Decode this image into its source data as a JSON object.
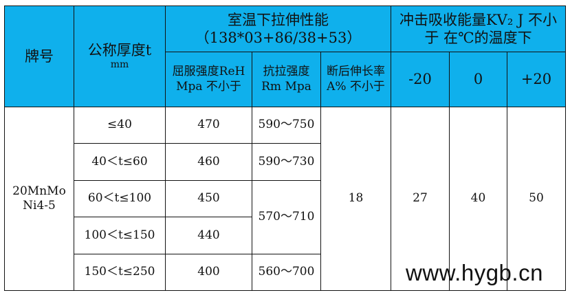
{
  "header": {
    "grade": "牌号",
    "thickness": "公称厚度t",
    "thickness_unit": "mm",
    "tensile_group": "室温下拉伸性能",
    "tensile_group_sub": "（138*03+86/38+53）",
    "impact_group": "冲击吸收能量KV₂ J 不小于 在℃的温度下",
    "yield": "屈服强度ReH Mpa 不小于",
    "tensile_strength": "抗拉强度 Rm Mpa",
    "elongation": "断后伸长率A% 不小于",
    "temps": [
      "-20",
      "0",
      "+20"
    ]
  },
  "grade": "20MnMoNi4-5",
  "rows": [
    {
      "thickness": "≤40",
      "yield": "470",
      "tensile": "590～750"
    },
    {
      "thickness": "40＜t≤60",
      "yield": "460",
      "tensile": "590～730"
    },
    {
      "thickness": "60＜t≤100",
      "yield": "450",
      "tensile": "570～710"
    },
    {
      "thickness": "100＜t≤150",
      "yield": "440"
    },
    {
      "thickness": "150＜t≤250",
      "yield": "400",
      "tensile": "560～700"
    }
  ],
  "elongation": "18",
  "impact": [
    "27",
    "40",
    "50"
  ],
  "watermark": "www.hygb.cn",
  "colors": {
    "header_bg": "#0fb0ec"
  }
}
